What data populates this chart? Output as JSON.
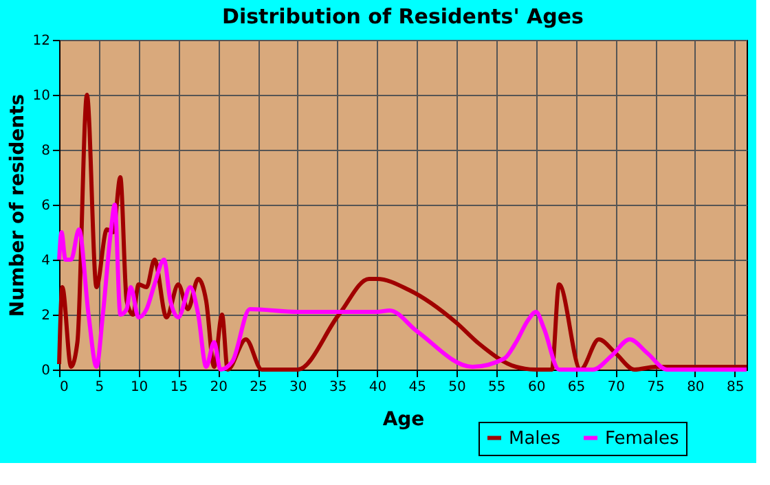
{
  "chart_data": {
    "type": "line",
    "title": "Distribution of Residents' Ages",
    "xlabel": "Age",
    "ylabel": "Number of residents",
    "xlim": [
      0,
      86.5
    ],
    "xticks": [
      0,
      5,
      10,
      15,
      20,
      25,
      30,
      35,
      40,
      45,
      50,
      55,
      60,
      65,
      70,
      75,
      80,
      85
    ],
    "ylim": [
      0,
      12
    ],
    "yticks": [
      0,
      2,
      4,
      6,
      8,
      10,
      12
    ],
    "grid": true,
    "legend": "bottom right",
    "marker": "none",
    "line_style": "solid",
    "series": [
      {
        "name": "Males",
        "color": "#a00000",
        "x": [
          0,
          0.4,
          1.5,
          2.3,
          3.5,
          4.7,
          6,
          6.8,
          7.7,
          8.5,
          9.3,
          10,
          11,
          12,
          13.5,
          15,
          16.2,
          17.5,
          18.5,
          19.5,
          20.5,
          21.2,
          23.5,
          25.5,
          30,
          35.2,
          39,
          40,
          44,
          50,
          52.8,
          57.5,
          60,
          62,
          62.9,
          65.6,
          67.9,
          70,
          72.4,
          75,
          80,
          86.5
        ],
        "values": [
          0.2,
          3,
          0.1,
          1,
          10,
          3,
          5.1,
          5,
          7,
          2.5,
          2,
          3.1,
          3,
          4,
          1.9,
          3.1,
          2.2,
          3.3,
          2.5,
          0.1,
          2,
          0,
          1.1,
          0,
          0,
          2,
          3.3,
          3.3,
          2.9,
          1.7,
          0.95,
          0.1,
          0,
          0,
          3.1,
          0,
          1.1,
          0.6,
          0,
          0.1,
          0.1,
          0.1
        ]
      },
      {
        "name": "Females",
        "color": "#ff00ff",
        "x": [
          0,
          0.3,
          0.8,
          1.5,
          2.5,
          3.7,
          4.7,
          5.5,
          6.5,
          7,
          7.7,
          8.5,
          9,
          10,
          11,
          12,
          13.2,
          14,
          15,
          16.5,
          17.5,
          18.5,
          19.5,
          20.3,
          21.8,
          24,
          30,
          40,
          41.6,
          45,
          52,
          56,
          57.5,
          59,
          60,
          61,
          62.9,
          67.2,
          69.5,
          71.8,
          74,
          76.5,
          86.5
        ],
        "values": [
          4,
          5,
          4,
          4,
          5.1,
          2,
          0.1,
          2,
          5,
          6,
          2,
          2.2,
          3,
          1.9,
          2.2,
          3.1,
          4,
          2.5,
          1.9,
          3,
          2,
          0.1,
          1,
          0,
          0.3,
          2.2,
          2.1,
          2.1,
          2.15,
          1.4,
          0.1,
          0.4,
          1,
          1.8,
          2.1,
          1.5,
          0,
          0,
          0.5,
          1.1,
          0.6,
          0,
          0
        ]
      }
    ]
  }
}
